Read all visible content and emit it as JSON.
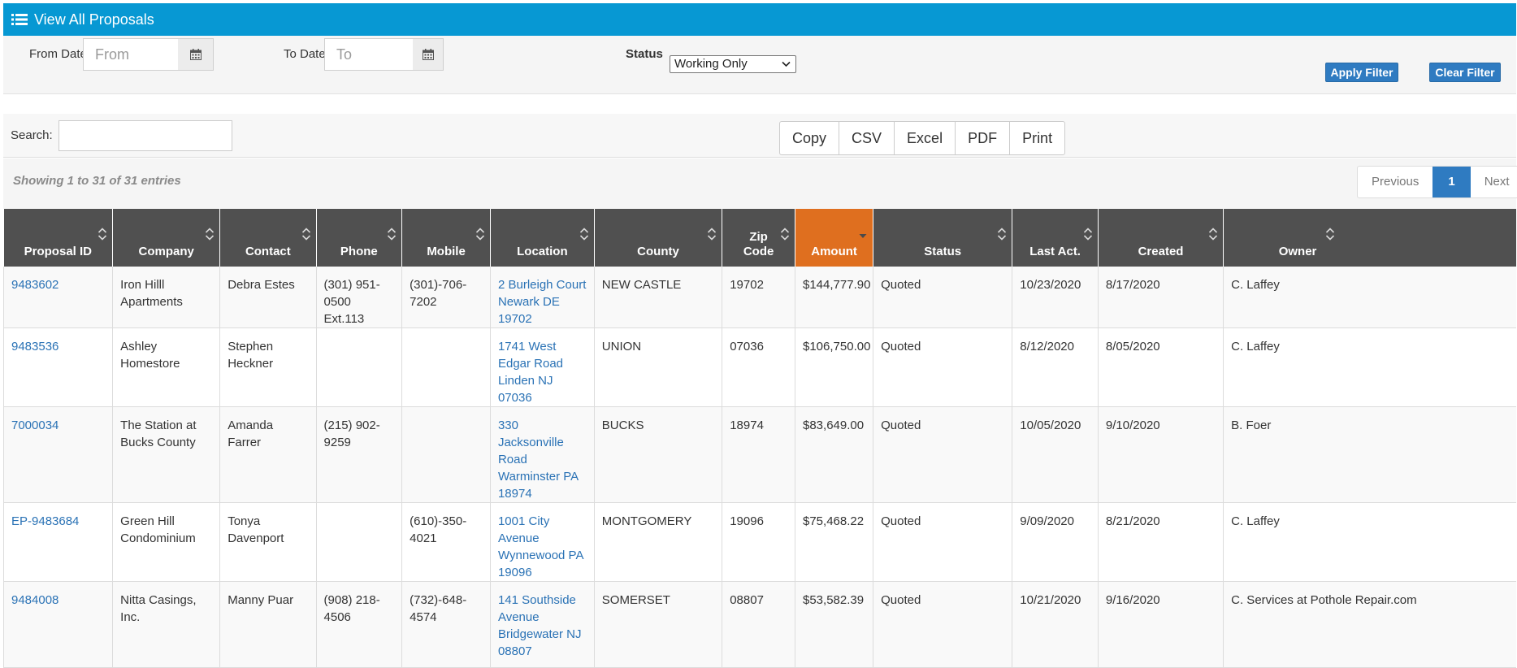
{
  "header": {
    "title": "View All Proposals",
    "icon": "list-icon"
  },
  "filters": {
    "from_label": "From Date:",
    "from_placeholder": "From",
    "to_label": "To Date:",
    "to_placeholder": "To",
    "status_label": "Status",
    "status_value": "Working Only",
    "apply_label": "Apply Filter",
    "clear_label": "Clear Filter"
  },
  "toolbar": {
    "search_label": "Search:",
    "search_value": "",
    "export_buttons": [
      "Copy",
      "CSV",
      "Excel",
      "PDF",
      "Print"
    ]
  },
  "info": {
    "text": "Showing 1 to 31 of 31 entries"
  },
  "pagination": {
    "previous": "Previous",
    "current": "1",
    "next": "Next"
  },
  "table": {
    "columns": [
      "Proposal ID",
      "Company",
      "Contact",
      "Phone",
      "Mobile",
      "Location",
      "County",
      "Zip Code",
      "Amount",
      "Status",
      "Last Act.",
      "Created",
      "Owner"
    ],
    "sorted_column": "Amount",
    "sort_direction": "descending",
    "rows": [
      {
        "id": "9483602",
        "company": "Iron Hilll Apartments",
        "contact": "Debra Estes",
        "phone": "(301) 951-0500 Ext.113",
        "mobile": "(301)-706-7202",
        "location": "2 Burleigh Court Newark DE 19702",
        "county": "NEW CASTLE",
        "zip": "19702",
        "amount": "$144,777.90",
        "status": "Quoted",
        "last_act": "10/23/2020",
        "created": "8/17/2020",
        "owner": "C. Laffey"
      },
      {
        "id": "9483536",
        "company": "Ashley Homestore",
        "contact": "Stephen Heckner",
        "phone": "",
        "mobile": "",
        "location": "1741 West Edgar Road Linden NJ 07036",
        "county": "UNION",
        "zip": "07036",
        "amount": "$106,750.00",
        "status": "Quoted",
        "last_act": "8/12/2020",
        "created": "8/05/2020",
        "owner": "C. Laffey"
      },
      {
        "id": "7000034",
        "company": "The Station at Bucks County",
        "contact": "Amanda Farrer",
        "phone": "(215) 902-9259",
        "mobile": "",
        "location": "330 Jacksonville Road Warminster PA 18974",
        "county": "BUCKS",
        "zip": "18974",
        "amount": "$83,649.00",
        "status": "Quoted",
        "last_act": "10/05/2020",
        "created": "9/10/2020",
        "owner": "B. Foer"
      },
      {
        "id": "EP-9483684",
        "company": "Green Hill Condominium",
        "contact": "Tonya Davenport",
        "phone": "",
        "mobile": "(610)-350-4021",
        "location": "1001 City Avenue Wynnewood PA 19096",
        "county": "MONTGOMERY",
        "zip": "19096",
        "amount": "$75,468.22",
        "status": "Quoted",
        "last_act": "9/09/2020",
        "created": "8/21/2020",
        "owner": "C. Laffey"
      },
      {
        "id": "9484008",
        "company": "Nitta Casings, Inc.",
        "contact": "Manny Puar",
        "phone": "(908) 218-4506",
        "mobile": "(732)-648-4574",
        "location": "141 Southside Avenue Bridgewater NJ 08807",
        "county": "SOMERSET",
        "zip": "08807",
        "amount": "$53,582.39",
        "status": "Quoted",
        "last_act": "10/21/2020",
        "created": "9/16/2020",
        "owner": "C. Services at Pothole Repair.com"
      }
    ]
  },
  "colors": {
    "header_bg": "#0798d3",
    "button_blue": "#2f7bc1",
    "table_head_bg": "#505050",
    "sorted_head_bg": "#df6f1f",
    "link": "#2a72b5"
  }
}
